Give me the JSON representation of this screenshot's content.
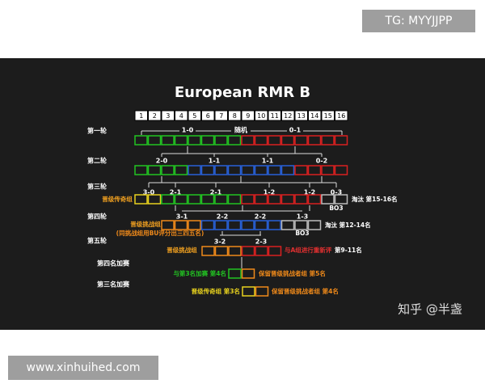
{
  "badge": "TG: MYYJJPP",
  "title": "European RMR B",
  "seeds": [
    1,
    2,
    3,
    4,
    5,
    6,
    7,
    8,
    9,
    10,
    11,
    12,
    13,
    14,
    15,
    16
  ],
  "round_labels": [
    "第一轮",
    "第二轮",
    "第三轮",
    "第四轮",
    "第五轮",
    "第四名加赛",
    "第三名加赛"
  ],
  "records": [
    [
      "1-0",
      "随机",
      "0-1"
    ],
    [
      "2-0",
      "1-1",
      "1-1",
      "0-2"
    ],
    [
      "3-0",
      "2-1",
      "2-1",
      "1-2",
      "1-2",
      "0-3"
    ],
    [
      "3-1",
      "2-2",
      "2-2",
      "1-3"
    ],
    [
      "3-2",
      "2-3"
    ]
  ],
  "notes": [
    "晋级传奇组",
    "淘汰 第15-16名",
    "BO3",
    "晋级挑战组",
    "(同挑战组用BU评分出三四五名)",
    "淘汰 第12-14名",
    "BO3",
    "晋级挑战组",
    "与A组进行重新评",
    "第9-11名",
    "与第3名加赛 第4名",
    "保留晋级挑战者组 第5名",
    "晋级传奇组 第3名",
    "保留晋级挑战者组 第4名"
  ],
  "watermark": "知乎 @半盏",
  "footer_url": "www.xinhuihed.com"
}
